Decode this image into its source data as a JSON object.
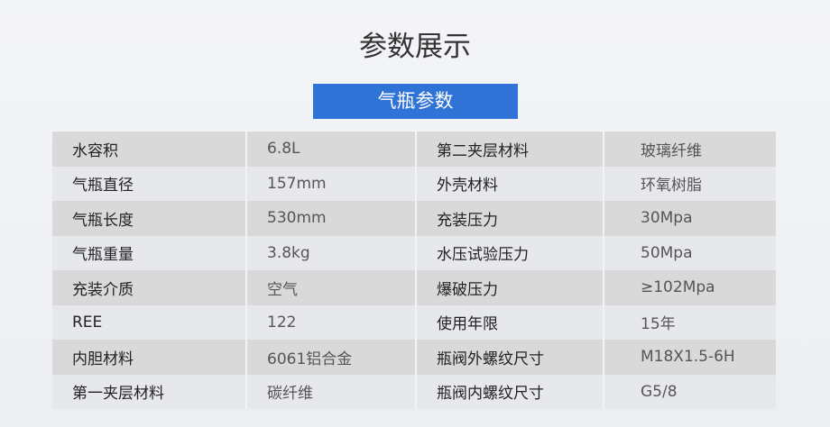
{
  "title": "参数展示",
  "section_button": "气瓶参数",
  "rows": [
    {
      "k1": "水容积",
      "v1": "6.8L",
      "k2": "第二夹层材料",
      "v2": "玻璃纤维"
    },
    {
      "k1": "气瓶直径",
      "v1": "157mm",
      "k2": "外壳材料",
      "v2": "环氧树脂"
    },
    {
      "k1": "气瓶长度",
      "v1": "530mm",
      "k2": "充装压力",
      "v2": "30Mpa"
    },
    {
      "k1": "气瓶重量",
      "v1": "3.8kg",
      "k2": "水压试验压力",
      "v2": "50Mpa"
    },
    {
      "k1": "充装介质",
      "v1": "空气",
      "k2": "爆破压力",
      "v2": "≥102Mpa"
    },
    {
      "k1": "REE",
      "v1": "122",
      "k2": "使用年限",
      "v2": "15年"
    },
    {
      "k1": "内胆材料",
      "v1": "6061铝合金",
      "k2": "瓶阀外螺纹尺寸",
      "v2": "M18X1.5-6H"
    },
    {
      "k1": "第一夹层材料",
      "v1": "碳纤维",
      "k2": "瓶阀内螺纹尺寸",
      "v2": "G5/8"
    }
  ]
}
